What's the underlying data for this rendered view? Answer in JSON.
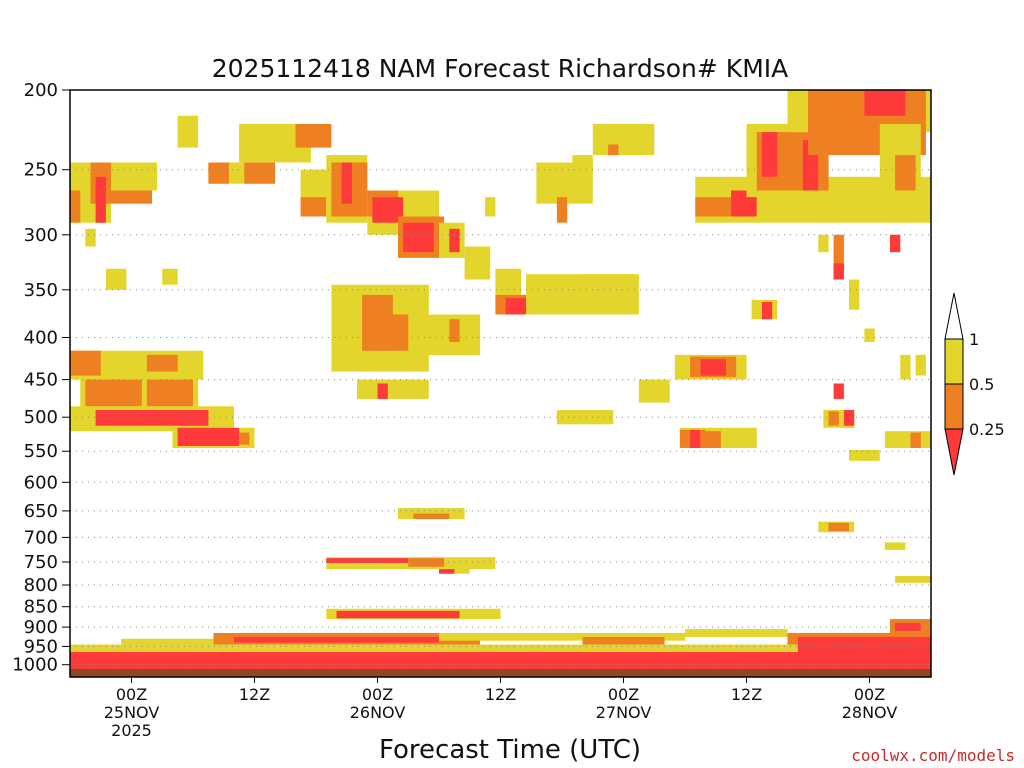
{
  "chart_data": {
    "type": "heatmap",
    "title": "2025112418 NAM Forecast Richardson# KMIA",
    "xlabel": "Forecast Time (UTC)",
    "ylabel": "",
    "credit": "coolwx.com/models",
    "y_scale": "log",
    "y_ticks": [
      "200",
      "250",
      "300",
      "350",
      "400",
      "450",
      "500",
      "550",
      "600",
      "650",
      "700",
      "750",
      "800",
      "850",
      "900",
      "950",
      "1000"
    ],
    "x_ticks": [
      {
        "t": 6,
        "lines": [
          "00Z",
          "25NOV",
          "2025"
        ]
      },
      {
        "t": 18,
        "lines": [
          "12Z"
        ]
      },
      {
        "t": 30,
        "lines": [
          "00Z",
          "26NOV"
        ]
      },
      {
        "t": 42,
        "lines": [
          "12Z"
        ]
      },
      {
        "t": 54,
        "lines": [
          "00Z",
          "27NOV"
        ]
      },
      {
        "t": 66,
        "lines": [
          "12Z"
        ]
      },
      {
        "t": 78,
        "lines": [
          "00Z",
          "28NOV"
        ]
      }
    ],
    "x_range_hours": [
      0,
      84
    ],
    "y_range_hPa": [
      200,
      1035
    ],
    "colorbar": {
      "levels": [
        "1",
        "0.5",
        "0.25"
      ],
      "bins": [
        {
          "range": "> 1",
          "color": "#ffffff"
        },
        {
          "range": "0.5 - 1",
          "color": "#e4d52c"
        },
        {
          "range": "0.25 - 0.5",
          "color": "#ee8022"
        },
        {
          "range": "< 0.25",
          "color": "#ff3a3a"
        }
      ]
    },
    "regions": [
      {
        "t0": 0,
        "t1": 4,
        "p0": 245,
        "p1": 290,
        "c": "#e4d52c"
      },
      {
        "t0": 2,
        "t1": 8,
        "p0": 245,
        "p1": 275,
        "c": "#ee8022"
      },
      {
        "t0": 0,
        "t1": 1,
        "p0": 265,
        "p1": 290,
        "c": "#ee8022"
      },
      {
        "t0": 2.5,
        "t1": 3.5,
        "p0": 255,
        "p1": 290,
        "c": "#ff3a3a"
      },
      {
        "t0": 4,
        "t1": 8.5,
        "p0": 245,
        "p1": 265,
        "c": "#e4d52c"
      },
      {
        "t0": 1.5,
        "t1": 2.5,
        "p0": 295,
        "p1": 310,
        "c": "#e4d52c"
      },
      {
        "t0": 3.5,
        "t1": 5.5,
        "p0": 330,
        "p1": 350,
        "c": "#e4d52c"
      },
      {
        "t0": 9,
        "t1": 10.5,
        "p0": 330,
        "p1": 345,
        "c": "#e4d52c"
      },
      {
        "t0": 10.5,
        "t1": 12.5,
        "p0": 215,
        "p1": 235,
        "c": "#e4d52c"
      },
      {
        "t0": 13.5,
        "t1": 20,
        "p0": 245,
        "p1": 260,
        "c": "#e4d52c"
      },
      {
        "t0": 13.5,
        "t1": 15.5,
        "p0": 245,
        "p1": 260,
        "c": "#ee8022"
      },
      {
        "t0": 17,
        "t1": 20,
        "p0": 245,
        "p1": 260,
        "c": "#ee8022"
      },
      {
        "t0": 16.5,
        "t1": 23.5,
        "p0": 220,
        "p1": 245,
        "c": "#e4d52c"
      },
      {
        "t0": 22,
        "t1": 25.5,
        "p0": 220,
        "p1": 235,
        "c": "#ee8022"
      },
      {
        "t0": 22.5,
        "t1": 27,
        "p0": 250,
        "p1": 285,
        "c": "#e4d52c"
      },
      {
        "t0": 22.5,
        "t1": 25,
        "p0": 270,
        "p1": 285,
        "c": "#ee8022"
      },
      {
        "t0": 25,
        "t1": 29,
        "p0": 240,
        "p1": 290,
        "c": "#e4d52c"
      },
      {
        "t0": 25.5,
        "t1": 29,
        "p0": 245,
        "p1": 285,
        "c": "#ee8022"
      },
      {
        "t0": 26.5,
        "t1": 27.5,
        "p0": 245,
        "p1": 275,
        "c": "#ff3a3a"
      },
      {
        "t0": 29,
        "t1": 36,
        "p0": 265,
        "p1": 300,
        "c": "#e4d52c"
      },
      {
        "t0": 29,
        "t1": 32,
        "p0": 265,
        "p1": 285,
        "c": "#ee8022"
      },
      {
        "t0": 29.5,
        "t1": 32.5,
        "p0": 270,
        "p1": 290,
        "c": "#ff3a3a"
      },
      {
        "t0": 32,
        "t1": 36.5,
        "p0": 285,
        "p1": 320,
        "c": "#ee8022"
      },
      {
        "t0": 32.5,
        "t1": 35.5,
        "p0": 290,
        "p1": 315,
        "c": "#ff3a3a"
      },
      {
        "t0": 36,
        "t1": 38.5,
        "p0": 290,
        "p1": 320,
        "c": "#e4d52c"
      },
      {
        "t0": 37,
        "t1": 38,
        "p0": 295,
        "p1": 315,
        "c": "#ff3a3a"
      },
      {
        "t0": 38.5,
        "t1": 41,
        "p0": 310,
        "p1": 340,
        "c": "#e4d52c"
      },
      {
        "t0": 40.5,
        "t1": 41.5,
        "p0": 270,
        "p1": 285,
        "c": "#e4d52c"
      },
      {
        "t0": 41.5,
        "t1": 44,
        "p0": 330,
        "p1": 360,
        "c": "#e4d52c"
      },
      {
        "t0": 41.5,
        "t1": 46.5,
        "p0": 355,
        "p1": 375,
        "c": "#ee8022"
      },
      {
        "t0": 42.5,
        "t1": 45,
        "p0": 358,
        "p1": 375,
        "c": "#ff3a3a"
      },
      {
        "t0": 45,
        "t1": 47,
        "p0": 355,
        "p1": 365,
        "c": "#ee8022"
      },
      {
        "t0": 44.5,
        "t1": 55.5,
        "p0": 335,
        "p1": 375,
        "c": "#e4d52c"
      },
      {
        "t0": 50,
        "t1": 55,
        "p0": 335,
        "p1": 350,
        "c": "#e4d52c"
      },
      {
        "t0": 45.5,
        "t1": 51,
        "p0": 245,
        "p1": 275,
        "c": "#e4d52c"
      },
      {
        "t0": 49,
        "t1": 51,
        "p0": 240,
        "p1": 255,
        "c": "#e4d52c"
      },
      {
        "t0": 47.5,
        "t1": 48.5,
        "p0": 270,
        "p1": 290,
        "c": "#ee8022"
      },
      {
        "t0": 51,
        "t1": 57,
        "p0": 220,
        "p1": 240,
        "c": "#e4d52c"
      },
      {
        "t0": 52.5,
        "t1": 53.5,
        "p0": 233,
        "p1": 240,
        "c": "#ee8022"
      },
      {
        "t0": 25.5,
        "t1": 35,
        "p0": 345,
        "p1": 440,
        "c": "#e4d52c"
      },
      {
        "t0": 28.5,
        "t1": 31.5,
        "p0": 355,
        "p1": 415,
        "c": "#ee8022"
      },
      {
        "t0": 29,
        "t1": 33.5,
        "p0": 375,
        "p1": 415,
        "c": "#ee8022"
      },
      {
        "t0": 33,
        "t1": 40,
        "p0": 375,
        "p1": 420,
        "c": "#e4d52c"
      },
      {
        "t0": 37,
        "t1": 38,
        "p0": 380,
        "p1": 405,
        "c": "#ee8022"
      },
      {
        "t0": 0,
        "t1": 13,
        "p0": 415,
        "p1": 450,
        "c": "#e4d52c"
      },
      {
        "t0": 0,
        "t1": 3,
        "p0": 415,
        "p1": 445,
        "c": "#ee8022"
      },
      {
        "t0": 7.5,
        "t1": 10.5,
        "p0": 420,
        "p1": 440,
        "c": "#ee8022"
      },
      {
        "t0": 1,
        "t1": 12.5,
        "p0": 450,
        "p1": 500,
        "c": "#e4d52c"
      },
      {
        "t0": 1.5,
        "t1": 7,
        "p0": 450,
        "p1": 485,
        "c": "#ee8022"
      },
      {
        "t0": 7.5,
        "t1": 12,
        "p0": 450,
        "p1": 485,
        "c": "#ee8022"
      },
      {
        "t0": 0,
        "t1": 16,
        "p0": 485,
        "p1": 520,
        "c": "#e4d52c"
      },
      {
        "t0": 2.5,
        "t1": 13.5,
        "p0": 490,
        "p1": 512,
        "c": "#ff3a3a"
      },
      {
        "t0": 10,
        "t1": 18,
        "p0": 515,
        "p1": 545,
        "c": "#e4d52c"
      },
      {
        "t0": 10.5,
        "t1": 16.5,
        "p0": 515,
        "p1": 542,
        "c": "#ff3a3a"
      },
      {
        "t0": 16.5,
        "t1": 17.5,
        "p0": 522,
        "p1": 540,
        "c": "#ee8022"
      },
      {
        "t0": 28,
        "t1": 35,
        "p0": 450,
        "p1": 475,
        "c": "#e4d52c"
      },
      {
        "t0": 30,
        "t1": 31,
        "p0": 455,
        "p1": 475,
        "c": "#ff3a3a"
      },
      {
        "t0": 47.5,
        "t1": 53,
        "p0": 490,
        "p1": 510,
        "c": "#e4d52c"
      },
      {
        "t0": 55.5,
        "t1": 58.5,
        "p0": 450,
        "p1": 480,
        "c": "#e4d52c"
      },
      {
        "t0": 59,
        "t1": 66,
        "p0": 420,
        "p1": 450,
        "c": "#e4d52c"
      },
      {
        "t0": 60.5,
        "t1": 65,
        "p0": 422,
        "p1": 447,
        "c": "#ee8022"
      },
      {
        "t0": 61.5,
        "t1": 64,
        "p0": 425,
        "p1": 445,
        "c": "#ff3a3a"
      },
      {
        "t0": 59.5,
        "t1": 67,
        "p0": 515,
        "p1": 545,
        "c": "#e4d52c"
      },
      {
        "t0": 59.5,
        "t1": 62,
        "p0": 518,
        "p1": 545,
        "c": "#ee8022"
      },
      {
        "t0": 60.5,
        "t1": 61.5,
        "p0": 518,
        "p1": 545,
        "c": "#ff3a3a"
      },
      {
        "t0": 61.5,
        "t1": 63.5,
        "p0": 520,
        "p1": 545,
        "c": "#ee8022"
      },
      {
        "t0": 61,
        "t1": 84,
        "p0": 255,
        "p1": 290,
        "c": "#e4d52c"
      },
      {
        "t0": 61,
        "t1": 66,
        "p0": 270,
        "p1": 285,
        "c": "#ee8022"
      },
      {
        "t0": 64.5,
        "t1": 67,
        "p0": 265,
        "p1": 285,
        "c": "#ff3a3a"
      },
      {
        "t0": 66,
        "t1": 74,
        "p0": 220,
        "p1": 270,
        "c": "#e4d52c"
      },
      {
        "t0": 67,
        "t1": 74,
        "p0": 225,
        "p1": 265,
        "c": "#ee8022"
      },
      {
        "t0": 67.5,
        "t1": 69,
        "p0": 225,
        "p1": 255,
        "c": "#ff3a3a"
      },
      {
        "t0": 71.5,
        "t1": 73,
        "p0": 230,
        "p1": 265,
        "c": "#ff3a3a"
      },
      {
        "t0": 70,
        "t1": 84,
        "p0": 200,
        "p1": 225,
        "c": "#e4d52c"
      },
      {
        "t0": 72,
        "t1": 83.5,
        "p0": 200,
        "p1": 240,
        "c": "#ee8022"
      },
      {
        "t0": 77.5,
        "t1": 81.5,
        "p0": 200,
        "p1": 215,
        "c": "#ff3a3a"
      },
      {
        "t0": 79,
        "t1": 83,
        "p0": 220,
        "p1": 265,
        "c": "#e4d52c"
      },
      {
        "t0": 80.5,
        "t1": 82.5,
        "p0": 240,
        "p1": 265,
        "c": "#ee8022"
      },
      {
        "t0": 66.5,
        "t1": 69,
        "p0": 360,
        "p1": 380,
        "c": "#e4d52c"
      },
      {
        "t0": 67.5,
        "t1": 68.5,
        "p0": 362,
        "p1": 380,
        "c": "#ff3a3a"
      },
      {
        "t0": 73,
        "t1": 74,
        "p0": 300,
        "p1": 315,
        "c": "#e4d52c"
      },
      {
        "t0": 74.5,
        "t1": 75.5,
        "p0": 300,
        "p1": 340,
        "c": "#ee8022"
      },
      {
        "t0": 74.5,
        "t1": 75.5,
        "p0": 325,
        "p1": 340,
        "c": "#ff3a3a"
      },
      {
        "t0": 76,
        "t1": 77,
        "p0": 340,
        "p1": 370,
        "c": "#e4d52c"
      },
      {
        "t0": 77.5,
        "t1": 78.5,
        "p0": 390,
        "p1": 405,
        "c": "#e4d52c"
      },
      {
        "t0": 80,
        "t1": 81,
        "p0": 300,
        "p1": 315,
        "c": "#ff3a3a"
      },
      {
        "t0": 81,
        "t1": 82,
        "p0": 420,
        "p1": 450,
        "c": "#e4d52c"
      },
      {
        "t0": 82.5,
        "t1": 83.5,
        "p0": 420,
        "p1": 445,
        "c": "#e4d52c"
      },
      {
        "t0": 74.5,
        "t1": 75.5,
        "p0": 455,
        "p1": 475,
        "c": "#ff3a3a"
      },
      {
        "t0": 73.5,
        "t1": 76.5,
        "p0": 490,
        "p1": 515,
        "c": "#e4d52c"
      },
      {
        "t0": 74,
        "t1": 75,
        "p0": 492,
        "p1": 512,
        "c": "#ee8022"
      },
      {
        "t0": 75.5,
        "t1": 76.5,
        "p0": 490,
        "p1": 512,
        "c": "#ff3a3a"
      },
      {
        "t0": 79.5,
        "t1": 84,
        "p0": 520,
        "p1": 545,
        "c": "#e4d52c"
      },
      {
        "t0": 82,
        "t1": 83,
        "p0": 522,
        "p1": 545,
        "c": "#ee8022"
      },
      {
        "t0": 76,
        "t1": 79,
        "p0": 548,
        "p1": 565,
        "c": "#e4d52c"
      },
      {
        "t0": 73,
        "t1": 76.5,
        "p0": 670,
        "p1": 690,
        "c": "#e4d52c"
      },
      {
        "t0": 74,
        "t1": 76,
        "p0": 672,
        "p1": 688,
        "c": "#ee8022"
      },
      {
        "t0": 79.5,
        "t1": 81.5,
        "p0": 710,
        "p1": 725,
        "c": "#e4d52c"
      },
      {
        "t0": 80.5,
        "t1": 84,
        "p0": 780,
        "p1": 795,
        "c": "#e4d52c"
      },
      {
        "t0": 32,
        "t1": 38.5,
        "p0": 645,
        "p1": 665,
        "c": "#e4d52c"
      },
      {
        "t0": 33.5,
        "t1": 37,
        "p0": 655,
        "p1": 665,
        "c": "#ee8022"
      },
      {
        "t0": 25,
        "t1": 41.5,
        "p0": 740,
        "p1": 765,
        "c": "#e4d52c"
      },
      {
        "t0": 25,
        "t1": 33,
        "p0": 742,
        "p1": 752,
        "c": "#ff3a3a"
      },
      {
        "t0": 33,
        "t1": 36.5,
        "p0": 742,
        "p1": 760,
        "c": "#ee8022"
      },
      {
        "t0": 36.5,
        "t1": 39,
        "p0": 760,
        "p1": 775,
        "c": "#e4d52c"
      },
      {
        "t0": 36,
        "t1": 37.5,
        "p0": 765,
        "p1": 775,
        "c": "#ff3a3a"
      },
      {
        "t0": 25,
        "t1": 42,
        "p0": 855,
        "p1": 880,
        "c": "#e4d52c"
      },
      {
        "t0": 26,
        "t1": 38,
        "p0": 860,
        "p1": 878,
        "c": "#ff3a3a"
      },
      {
        "t0": 0,
        "t1": 84,
        "p0": 945,
        "p1": 1005,
        "c": "#e4d52c"
      },
      {
        "t0": 0,
        "t1": 84,
        "p0": 965,
        "p1": 1012,
        "c": "#ff3a3a"
      },
      {
        "t0": 5,
        "t1": 20,
        "p0": 930,
        "p1": 950,
        "c": "#e4d52c"
      },
      {
        "t0": 14,
        "t1": 40,
        "p0": 915,
        "p1": 945,
        "c": "#ee8022"
      },
      {
        "t0": 16,
        "t1": 36,
        "p0": 925,
        "p1": 940,
        "c": "#ff3a3a"
      },
      {
        "t0": 36,
        "t1": 60,
        "p0": 915,
        "p1": 935,
        "c": "#e4d52c"
      },
      {
        "t0": 50,
        "t1": 58,
        "p0": 925,
        "p1": 945,
        "c": "#ee8022"
      },
      {
        "t0": 60,
        "t1": 70,
        "p0": 905,
        "p1": 925,
        "c": "#e4d52c"
      },
      {
        "t0": 70,
        "t1": 84,
        "p0": 915,
        "p1": 945,
        "c": "#ee8022"
      },
      {
        "t0": 71,
        "t1": 84,
        "p0": 925,
        "p1": 965,
        "c": "#ff3a3a"
      },
      {
        "t0": 80,
        "t1": 84,
        "p0": 880,
        "p1": 915,
        "c": "#ee8022"
      },
      {
        "t0": 80.5,
        "t1": 83,
        "p0": 890,
        "p1": 910,
        "c": "#ff3a3a"
      },
      {
        "t0": 0,
        "t1": 84,
        "p0": 1012,
        "p1": 1035,
        "c": "#8b4a24"
      }
    ]
  }
}
